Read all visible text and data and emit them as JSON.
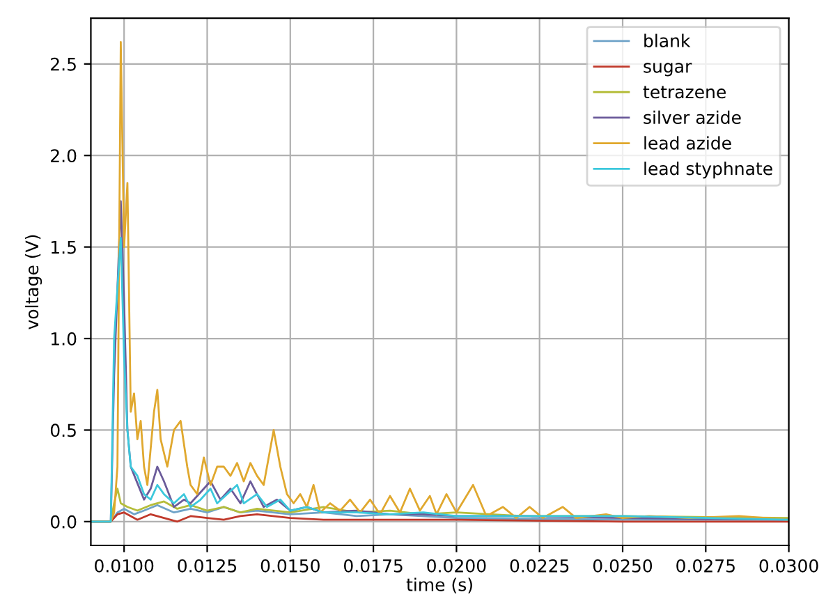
{
  "chart_data": {
    "type": "line",
    "xlabel": "time (s)",
    "ylabel": "voltage (V)",
    "xlim": [
      0.009,
      0.03
    ],
    "ylim": [
      -0.13,
      2.75
    ],
    "xticks": [
      {
        "value": 0.01,
        "label": "0.0100"
      },
      {
        "value": 0.0125,
        "label": "0.0125"
      },
      {
        "value": 0.015,
        "label": "0.0150"
      },
      {
        "value": 0.0175,
        "label": "0.0175"
      },
      {
        "value": 0.02,
        "label": "0.0200"
      },
      {
        "value": 0.0225,
        "label": "0.0225"
      },
      {
        "value": 0.025,
        "label": "0.0250"
      },
      {
        "value": 0.0275,
        "label": "0.0275"
      },
      {
        "value": 0.03,
        "label": "0.0300"
      }
    ],
    "yticks": [
      {
        "value": 0,
        "label": "0.0"
      },
      {
        "value": 0.5,
        "label": "0.5"
      },
      {
        "value": 1,
        "label": "1.0"
      },
      {
        "value": 1.5,
        "label": "1.5"
      },
      {
        "value": 2,
        "label": "2.0"
      },
      {
        "value": 2.5,
        "label": "2.5"
      }
    ],
    "grid": true,
    "legend": "top right",
    "marker": "none",
    "line_style": "solid",
    "series": [
      {
        "name": "blank",
        "color": "#6fa3c8",
        "x": [
          0.009,
          0.0096,
          0.0098,
          0.01,
          0.0103,
          0.0106,
          0.011,
          0.0115,
          0.012,
          0.0125,
          0.013,
          0.0135,
          0.014,
          0.015,
          0.016,
          0.017,
          0.018,
          0.02,
          0.025,
          0.03
        ],
        "values": [
          0,
          0,
          0.05,
          0.07,
          0.04,
          0.06,
          0.09,
          0.05,
          0.07,
          0.05,
          0.08,
          0.05,
          0.06,
          0.04,
          0.05,
          0.03,
          0.04,
          0.02,
          0.01,
          0.01
        ]
      },
      {
        "name": "sugar",
        "color": "#c0392b",
        "x": [
          0.009,
          0.0096,
          0.0098,
          0.01,
          0.0104,
          0.0108,
          0.0112,
          0.0116,
          0.012,
          0.0125,
          0.013,
          0.0135,
          0.014,
          0.015,
          0.016,
          0.018,
          0.02,
          0.025,
          0.03
        ],
        "values": [
          0,
          0,
          0.04,
          0.05,
          0.01,
          0.04,
          0.02,
          0.0,
          0.03,
          0.02,
          0.01,
          0.03,
          0.04,
          0.02,
          0.01,
          0.01,
          0.01,
          0.0,
          0.0
        ]
      },
      {
        "name": "tetrazene",
        "color": "#b5bd3a",
        "x": [
          0.009,
          0.0096,
          0.0097,
          0.0098,
          0.0099,
          0.0101,
          0.0104,
          0.0108,
          0.0112,
          0.0116,
          0.012,
          0.0125,
          0.013,
          0.0135,
          0.014,
          0.015,
          0.016,
          0.017,
          0.018,
          0.019,
          0.02,
          0.022,
          0.025,
          0.03
        ],
        "values": [
          0,
          0,
          0.1,
          0.18,
          0.1,
          0.08,
          0.06,
          0.09,
          0.11,
          0.07,
          0.09,
          0.06,
          0.08,
          0.05,
          0.07,
          0.05,
          0.08,
          0.05,
          0.06,
          0.04,
          0.05,
          0.03,
          0.03,
          0.02
        ]
      },
      {
        "name": "silver azide",
        "color": "#6b5b9a",
        "x": [
          0.009,
          0.0096,
          0.0097,
          0.0099,
          0.01,
          0.0101,
          0.0102,
          0.0104,
          0.0106,
          0.0108,
          0.011,
          0.0112,
          0.0115,
          0.0118,
          0.012,
          0.0123,
          0.0126,
          0.0129,
          0.0132,
          0.0135,
          0.0138,
          0.0142,
          0.0146,
          0.015,
          0.0155,
          0.016,
          0.017,
          0.018,
          0.019,
          0.02,
          0.022,
          0.025,
          0.03
        ],
        "values": [
          0,
          0,
          0.8,
          1.75,
          1.2,
          0.5,
          0.3,
          0.21,
          0.12,
          0.18,
          0.3,
          0.22,
          0.08,
          0.12,
          0.1,
          0.16,
          0.22,
          0.12,
          0.18,
          0.1,
          0.22,
          0.08,
          0.12,
          0.06,
          0.08,
          0.05,
          0.06,
          0.04,
          0.04,
          0.03,
          0.03,
          0.02,
          0.01
        ]
      },
      {
        "name": "lead azide",
        "color": "#e0a82e",
        "x": [
          0.009,
          0.0096,
          0.0097,
          0.0098,
          0.0099,
          0.01,
          0.0101,
          0.0102,
          0.0103,
          0.0104,
          0.0105,
          0.0106,
          0.0107,
          0.0109,
          0.011,
          0.0111,
          0.0113,
          0.0115,
          0.0117,
          0.0119,
          0.012,
          0.0122,
          0.0124,
          0.0126,
          0.0128,
          0.013,
          0.0132,
          0.0134,
          0.0136,
          0.0138,
          0.014,
          0.0142,
          0.0145,
          0.0147,
          0.0149,
          0.0151,
          0.0153,
          0.0155,
          0.0157,
          0.0159,
          0.0162,
          0.0165,
          0.0168,
          0.0171,
          0.0174,
          0.0177,
          0.018,
          0.0183,
          0.0186,
          0.0189,
          0.0192,
          0.0194,
          0.0197,
          0.02,
          0.0205,
          0.0209,
          0.0214,
          0.0218,
          0.0222,
          0.0226,
          0.0232,
          0.0236,
          0.0245,
          0.025,
          0.0258,
          0.027,
          0.0285,
          0.03
        ],
        "values": [
          0,
          0,
          0.05,
          0.3,
          2.62,
          1.5,
          1.85,
          0.6,
          0.7,
          0.45,
          0.55,
          0.3,
          0.2,
          0.6,
          0.72,
          0.45,
          0.3,
          0.5,
          0.55,
          0.3,
          0.2,
          0.15,
          0.35,
          0.2,
          0.3,
          0.3,
          0.25,
          0.32,
          0.22,
          0.32,
          0.25,
          0.2,
          0.5,
          0.3,
          0.15,
          0.1,
          0.15,
          0.08,
          0.2,
          0.05,
          0.1,
          0.06,
          0.12,
          0.05,
          0.12,
          0.04,
          0.14,
          0.05,
          0.18,
          0.06,
          0.14,
          0.04,
          0.15,
          0.05,
          0.2,
          0.03,
          0.08,
          0.02,
          0.08,
          0.02,
          0.08,
          0.02,
          0.04,
          0.02,
          0.03,
          0.02,
          0.03,
          0.01
        ]
      },
      {
        "name": "lead styphnate",
        "color": "#3cc8dc",
        "x": [
          0.009,
          0.0096,
          0.0097,
          0.0099,
          0.01,
          0.0101,
          0.0102,
          0.0104,
          0.0106,
          0.0108,
          0.011,
          0.0112,
          0.0115,
          0.0118,
          0.012,
          0.0123,
          0.0126,
          0.0128,
          0.0131,
          0.0134,
          0.0136,
          0.014,
          0.0143,
          0.0147,
          0.015,
          0.0155,
          0.016,
          0.017,
          0.018,
          0.019,
          0.02,
          0.022,
          0.025,
          0.03
        ],
        "values": [
          0,
          0,
          1.0,
          1.55,
          0.9,
          0.5,
          0.3,
          0.25,
          0.15,
          0.12,
          0.2,
          0.15,
          0.1,
          0.15,
          0.08,
          0.12,
          0.18,
          0.1,
          0.15,
          0.2,
          0.1,
          0.15,
          0.08,
          0.12,
          0.06,
          0.08,
          0.05,
          0.05,
          0.04,
          0.05,
          0.03,
          0.03,
          0.03,
          0.01
        ]
      }
    ]
  }
}
